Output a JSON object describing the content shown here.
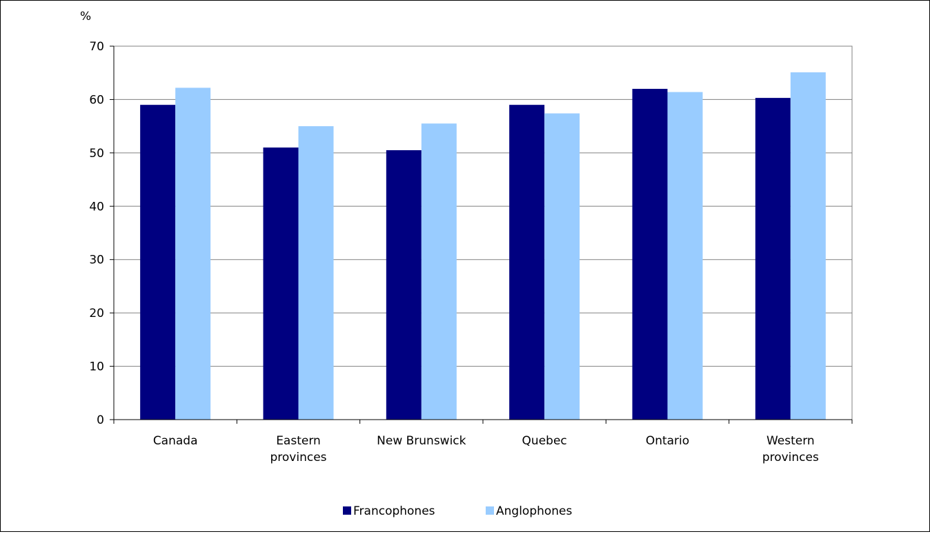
{
  "chart_data": {
    "type": "bar",
    "title": "",
    "xlabel": "",
    "ylabel": "%",
    "ylim": [
      0,
      70
    ],
    "yticks": [
      0,
      10,
      20,
      30,
      40,
      50,
      60,
      70
    ],
    "categories": [
      [
        "Canada"
      ],
      [
        "Eastern",
        "provinces"
      ],
      [
        "New Brunswick"
      ],
      [
        "Quebec"
      ],
      [
        "Ontario"
      ],
      [
        "Western",
        "provinces"
      ]
    ],
    "series": [
      {
        "name": "Francophones",
        "color": "#000080",
        "values": [
          59,
          51,
          50.5,
          59,
          62,
          60.3
        ]
      },
      {
        "name": "Anglophones",
        "color": "#99ccff",
        "values": [
          62.2,
          55,
          55.5,
          57.4,
          61.4,
          65.1
        ]
      }
    ],
    "grid": true,
    "legend": "bottom"
  }
}
